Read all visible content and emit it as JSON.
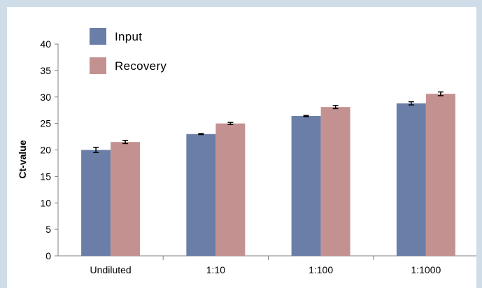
{
  "chart_data": {
    "type": "bar",
    "title": "",
    "xlabel": "",
    "ylabel": "Ct-value",
    "ylim": [
      0,
      40
    ],
    "yticks": [
      0,
      5,
      10,
      15,
      20,
      25,
      30,
      35,
      40
    ],
    "categories": [
      "Undiluted",
      "1:10",
      "1:100",
      "1:1000"
    ],
    "series": [
      {
        "name": "Input",
        "color": "#6a7ea8",
        "values": [
          20.0,
          23.0,
          26.4,
          28.8
        ],
        "errors": [
          0.5,
          0.1,
          0.1,
          0.3
        ]
      },
      {
        "name": "Recovery",
        "color": "#c39290",
        "values": [
          21.5,
          25.0,
          28.1,
          30.6
        ],
        "errors": [
          0.3,
          0.2,
          0.3,
          0.35
        ]
      }
    ],
    "legend_position": "top-left",
    "grid": false
  }
}
